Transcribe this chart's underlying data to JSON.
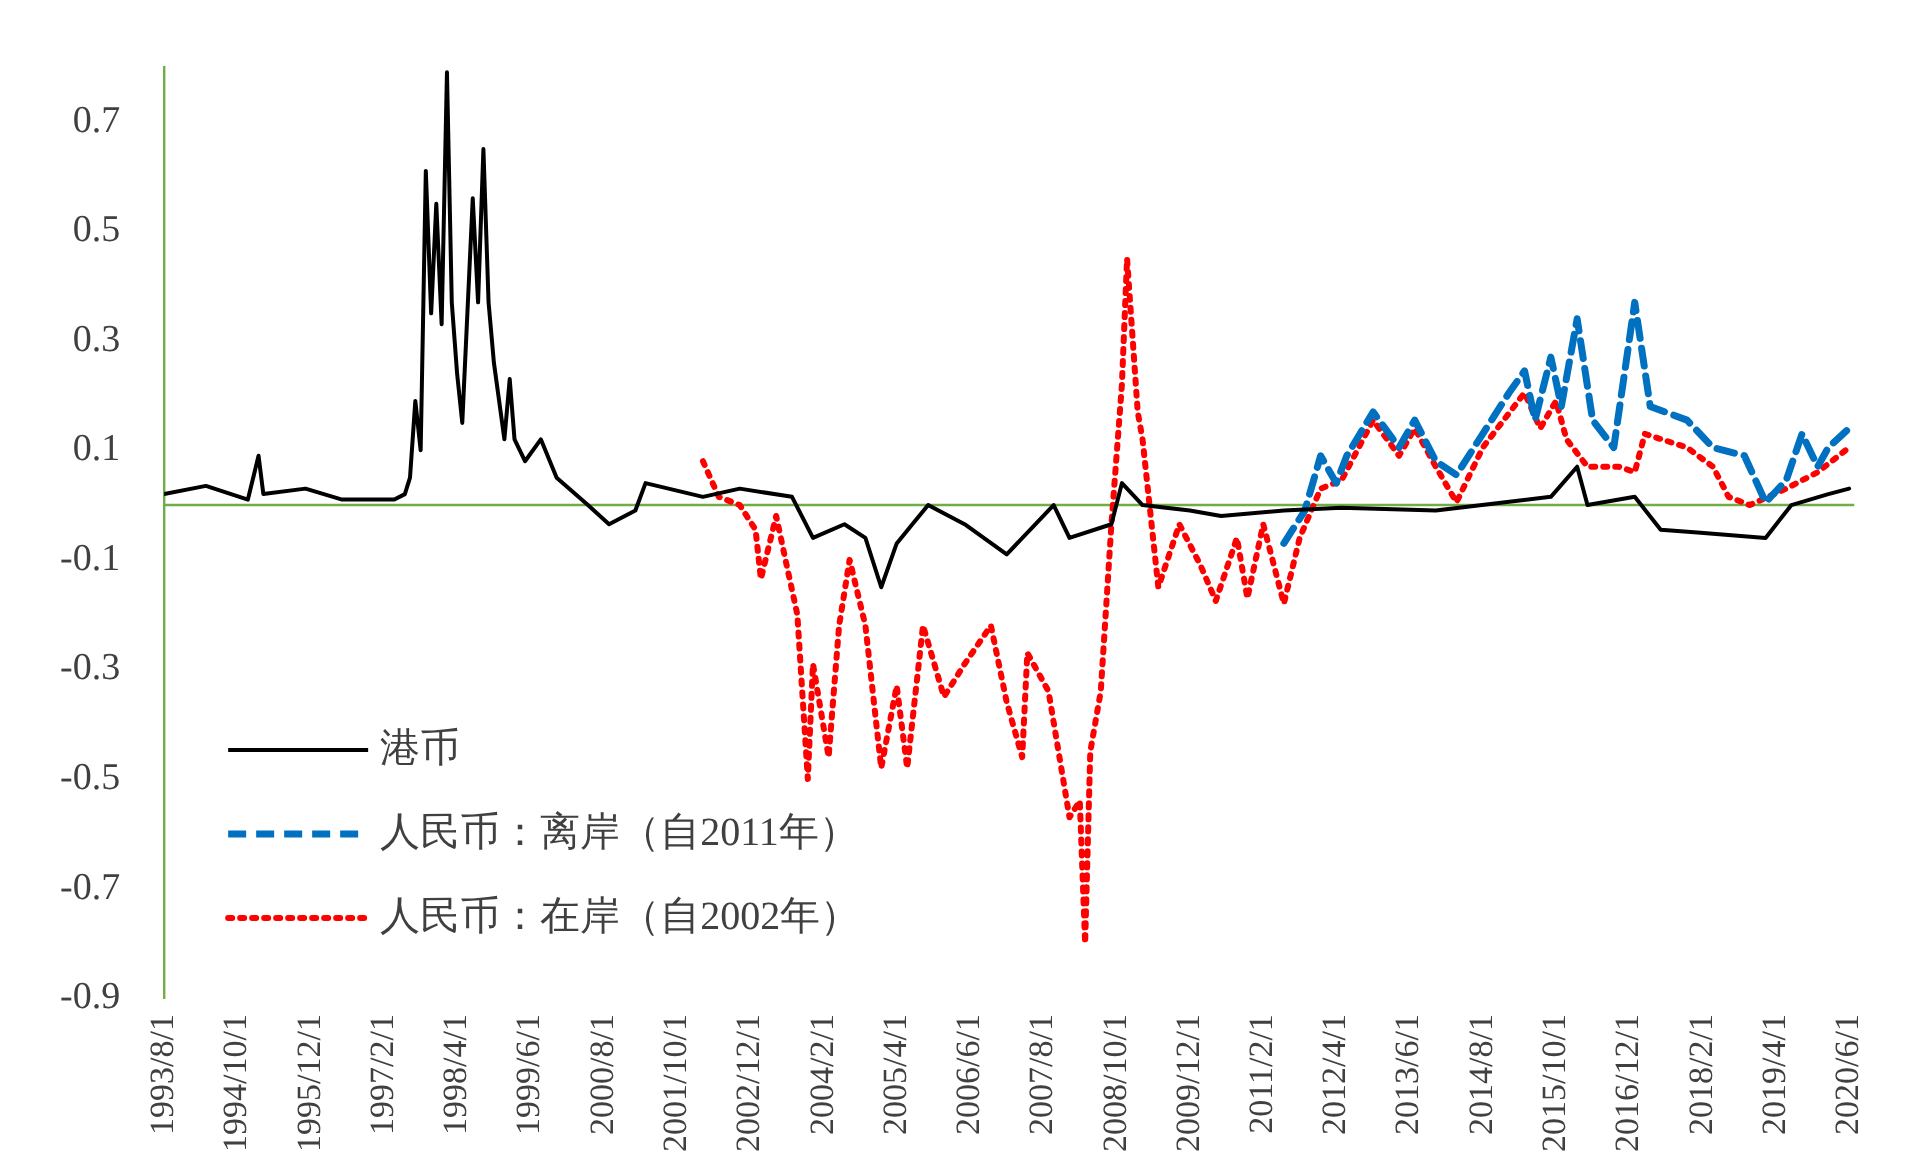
{
  "chart_data": {
    "type": "line",
    "ylim": [
      -0.9,
      0.8
    ],
    "yticks": [
      -0.9,
      -0.7,
      -0.5,
      -0.3,
      -0.1,
      0.1,
      0.3,
      0.5,
      0.7
    ],
    "xlim": [
      "1993-08-01",
      "2020-07-01"
    ],
    "xticks": [
      {
        "value": "1993-08-01",
        "label": "1993/8/1"
      },
      {
        "value": "1994-10-01",
        "label": "1994/10/1"
      },
      {
        "value": "1995-12-01",
        "label": "1995/12/1"
      },
      {
        "value": "1997-02-01",
        "label": "1997/2/1"
      },
      {
        "value": "1998-04-01",
        "label": "1998/4/1"
      },
      {
        "value": "1999-06-01",
        "label": "1999/6/1"
      },
      {
        "value": "2000-08-01",
        "label": "2000/8/1"
      },
      {
        "value": "2001-10-01",
        "label": "2001/10/1"
      },
      {
        "value": "2002-12-01",
        "label": "2002/12/1"
      },
      {
        "value": "2004-02-01",
        "label": "2004/2/1"
      },
      {
        "value": "2005-04-01",
        "label": "2005/4/1"
      },
      {
        "value": "2006-06-01",
        "label": "2006/6/1"
      },
      {
        "value": "2007-08-01",
        "label": "2007/8/1"
      },
      {
        "value": "2008-10-01",
        "label": "2008/10/1"
      },
      {
        "value": "2009-12-01",
        "label": "2009/12/1"
      },
      {
        "value": "2011-02-01",
        "label": "2011/2/1"
      },
      {
        "value": "2012-04-01",
        "label": "2012/4/1"
      },
      {
        "value": "2013-06-01",
        "label": "2013/6/1"
      },
      {
        "value": "2014-08-01",
        "label": "2014/8/1"
      },
      {
        "value": "2015-10-01",
        "label": "2015/10/1"
      },
      {
        "value": "2016-12-01",
        "label": "2016/12/1"
      },
      {
        "value": "2018-02-01",
        "label": "2018/2/1"
      },
      {
        "value": "2019-04-01",
        "label": "2019/4/1"
      },
      {
        "value": "2020-06-01",
        "label": "2020/6/1"
      }
    ],
    "grid": false,
    "legend": "bottom left",
    "marker": "none",
    "ref_lines": [
      {
        "axis": "y",
        "value": 0,
        "color": "#70ad47"
      }
    ],
    "series": [
      {
        "name": "港币",
        "color": "#000000",
        "line_style": "solid",
        "x": [
          "1993-08",
          "1994-04",
          "1994-12",
          "1995-02",
          "1995-03",
          "1995-11",
          "1996-06",
          "1997-04",
          "1997-06",
          "1997-07",
          "1997-08",
          "1997-09",
          "1997-10",
          "1997-11",
          "1997-12",
          "1998-01",
          "1998-02",
          "1998-03",
          "1998-04",
          "1998-05",
          "1998-07",
          "1998-08",
          "1998-09",
          "1998-10",
          "1998-11",
          "1999-01",
          "1999-02",
          "1999-03",
          "1999-05",
          "1999-08",
          "1999-11",
          "2000-05",
          "2000-09",
          "2001-02",
          "2001-04",
          "2002-03",
          "2002-10",
          "2003-08",
          "2003-12",
          "2004-06",
          "2004-10",
          "2005-01",
          "2005-04",
          "2005-07",
          "2005-10",
          "2006-05",
          "2007-01",
          "2007-10",
          "2008-01",
          "2008-09",
          "2008-11",
          "2009-03",
          "2009-12",
          "2010-06",
          "2011-06",
          "2012-05",
          "2013-11",
          "2015-09",
          "2016-02",
          "2016-04",
          "2017-01",
          "2017-06",
          "2018-01",
          "2019-02",
          "2019-07",
          "2020-02",
          "2020-06"
        ],
        "values": [
          0.02,
          0.035,
          0.01,
          0.09,
          0.02,
          0.03,
          0.01,
          0.01,
          0.02,
          0.05,
          0.19,
          0.1,
          0.61,
          0.35,
          0.55,
          0.33,
          0.79,
          0.37,
          0.24,
          0.15,
          0.56,
          0.37,
          0.65,
          0.37,
          0.26,
          0.12,
          0.23,
          0.12,
          0.08,
          0.12,
          0.05,
          0.0,
          -0.035,
          -0.01,
          0.04,
          0.015,
          0.03,
          0.015,
          -0.06,
          -0.035,
          -0.06,
          -0.15,
          -0.07,
          -0.035,
          0.0,
          -0.035,
          -0.09,
          0.0,
          -0.06,
          -0.035,
          0.04,
          0.0,
          -0.01,
          -0.02,
          -0.01,
          -0.005,
          -0.01,
          0.015,
          0.07,
          0.0,
          0.015,
          -0.045,
          -0.05,
          -0.06,
          0.0,
          0.02,
          0.03
        ]
      },
      {
        "name": "人民币：离岸（自2011年）",
        "color": "#0070c0",
        "line_style": "dashed",
        "x": [
          "2011-06",
          "2011-10",
          "2012-01",
          "2012-04",
          "2012-06",
          "2012-11",
          "2013-04",
          "2013-07",
          "2013-11",
          "2014-03",
          "2014-08",
          "2015-01",
          "2015-04",
          "2015-06",
          "2015-09",
          "2015-11",
          "2016-02",
          "2016-05",
          "2016-09",
          "2017-01",
          "2017-04",
          "2017-11",
          "2018-04",
          "2018-10",
          "2019-02",
          "2019-06",
          "2019-09",
          "2019-12",
          "2020-02",
          "2020-06"
        ],
        "values": [
          -0.07,
          -0.01,
          0.09,
          0.04,
          0.09,
          0.17,
          0.105,
          0.155,
          0.08,
          0.055,
          0.13,
          0.205,
          0.245,
          0.155,
          0.27,
          0.18,
          0.34,
          0.155,
          0.105,
          0.37,
          0.18,
          0.155,
          0.105,
          0.09,
          0.005,
          0.045,
          0.13,
          0.07,
          0.105,
          0.14
        ]
      },
      {
        "name": "人民币：在岸（自2002年）",
        "color": "#ff0000",
        "line_style": "dotted",
        "x": [
          "2002-03",
          "2002-06",
          "2002-10",
          "2003-01",
          "2003-02",
          "2003-05",
          "2003-07",
          "2003-09",
          "2003-11",
          "2003-12",
          "2004-03",
          "2004-05",
          "2004-07",
          "2004-10",
          "2005-01",
          "2005-04",
          "2005-06",
          "2005-09",
          "2006-01",
          "2006-05",
          "2006-10",
          "2007-01",
          "2007-04",
          "2007-05",
          "2007-09",
          "2008-01",
          "2008-03",
          "2008-04",
          "2008-05",
          "2008-07",
          "2008-09",
          "2008-11",
          "2008-12",
          "2009-02",
          "2009-03",
          "2009-05",
          "2009-06",
          "2009-10",
          "2010-02",
          "2010-05",
          "2010-09",
          "2010-11",
          "2011-02",
          "2011-06",
          "2011-09",
          "2012-01",
          "2012-05",
          "2012-11",
          "2013-04",
          "2013-07",
          "2013-11",
          "2014-03",
          "2014-08",
          "2015-04",
          "2015-07",
          "2015-10",
          "2015-12",
          "2016-04",
          "2016-10",
          "2017-01",
          "2017-03",
          "2017-11",
          "2018-04",
          "2018-07",
          "2018-11",
          "2019-06",
          "2019-12",
          "2020-06"
        ],
        "values": [
          0.08,
          0.015,
          0.0,
          -0.045,
          -0.135,
          -0.02,
          -0.11,
          -0.2,
          -0.5,
          -0.29,
          -0.46,
          -0.22,
          -0.1,
          -0.22,
          -0.48,
          -0.33,
          -0.48,
          -0.22,
          -0.35,
          -0.29,
          -0.22,
          -0.36,
          -0.46,
          -0.27,
          -0.34,
          -0.57,
          -0.54,
          -0.8,
          -0.45,
          -0.34,
          -0.035,
          0.22,
          0.45,
          0.17,
          0.12,
          -0.06,
          -0.15,
          -0.035,
          -0.11,
          -0.175,
          -0.06,
          -0.17,
          -0.035,
          -0.18,
          -0.06,
          0.03,
          0.045,
          0.155,
          0.09,
          0.14,
          0.07,
          0.005,
          0.105,
          0.205,
          0.14,
          0.19,
          0.12,
          0.07,
          0.07,
          0.06,
          0.13,
          0.105,
          0.07,
          0.015,
          0.0,
          0.03,
          0.06,
          0.105
        ]
      }
    ]
  }
}
